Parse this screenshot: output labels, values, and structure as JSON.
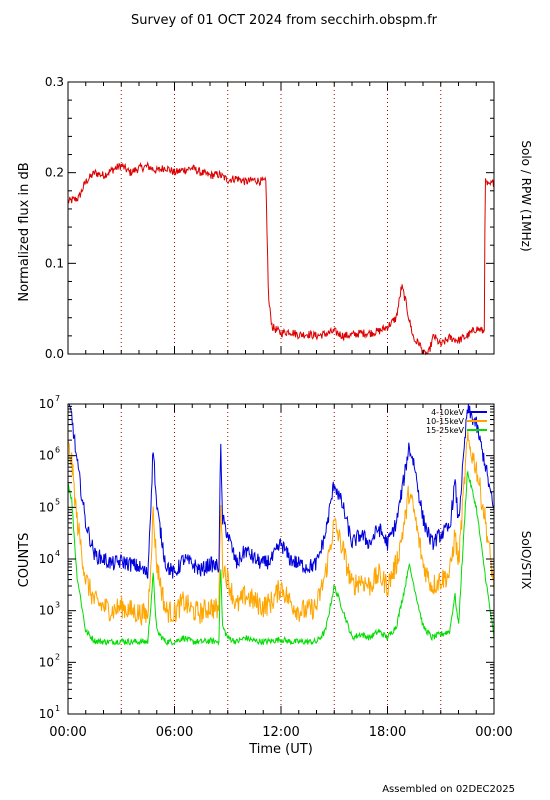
{
  "page": {
    "title": "Survey of 01 OCT 2024 from secchirh.obspm.fr",
    "footer": "Assembled on 02DEC2025"
  },
  "colors": {
    "rpw": "#dd0000",
    "stix_low": "#0000dd",
    "stix_mid": "#ffa500",
    "stix_high": "#00dd00",
    "grid": "#aa0000"
  },
  "chart_data": [
    {
      "type": "line",
      "ylabel": "Normalized flux in dB",
      "right_label": "Solo / RPW (1MHz)",
      "xlim": [
        0,
        24
      ],
      "ylim": [
        0,
        0.3
      ],
      "yticks": [
        0.0,
        0.1,
        0.2,
        0.3
      ],
      "ytick_labels": [
        "0.0",
        "0.1",
        "0.2",
        "0.3"
      ],
      "grid": "vertical dotted lines every 3 hours",
      "series": [
        {
          "color": "#dd0000",
          "x": [
            0,
            0.3,
            0.6,
            1.0,
            1.5,
            2.0,
            2.5,
            3.0,
            3.5,
            4.0,
            4.5,
            5.0,
            5.5,
            6.0,
            6.5,
            7.0,
            7.5,
            8.0,
            8.5,
            9.0,
            9.5,
            10.0,
            10.5,
            11.0,
            11.15,
            11.3,
            11.5,
            12.0,
            12.5,
            13.0,
            13.5,
            14.0,
            14.5,
            15.0,
            15.5,
            16.0,
            16.5,
            17.0,
            17.5,
            18.0,
            18.5,
            18.8,
            19.0,
            19.2,
            19.5,
            19.8,
            20.0,
            20.3,
            20.6,
            21.0,
            21.5,
            22.0,
            22.5,
            23.0,
            23.3,
            23.45,
            23.5,
            23.7,
            24.0
          ],
          "y": [
            0.168,
            0.17,
            0.172,
            0.19,
            0.2,
            0.197,
            0.203,
            0.208,
            0.2,
            0.205,
            0.207,
            0.202,
            0.206,
            0.2,
            0.203,
            0.205,
            0.2,
            0.197,
            0.198,
            0.192,
            0.194,
            0.19,
            0.192,
            0.19,
            0.19,
            0.06,
            0.03,
            0.023,
            0.025,
            0.021,
            0.022,
            0.02,
            0.022,
            0.025,
            0.02,
            0.021,
            0.023,
            0.023,
            0.025,
            0.03,
            0.04,
            0.075,
            0.06,
            0.04,
            0.015,
            0.012,
            0.0,
            0.0,
            0.02,
            0.01,
            0.018,
            0.015,
            0.02,
            0.028,
            0.026,
            0.024,
            0.19,
            0.185,
            0.19
          ]
        }
      ]
    },
    {
      "type": "line",
      "ylabel": "COUNTS",
      "right_label": "SolO/STIX",
      "xlabel": "Time (UT)",
      "xlim": [
        0,
        24
      ],
      "ylim": [
        10,
        10000000
      ],
      "yscale": "log",
      "ytick_exponents": [
        1,
        2,
        3,
        4,
        5,
        6,
        7
      ],
      "xticks": [
        0,
        6,
        12,
        18,
        24
      ],
      "xtick_labels": [
        "00:00",
        "06:00",
        "12:00",
        "18:00",
        "00:00"
      ],
      "grid": "vertical dotted lines every 3 hours",
      "legend_position": "top-right",
      "series": [
        {
          "name": "4-10keV",
          "color": "#0000dd",
          "x": [
            0,
            0.2,
            0.5,
            1.0,
            1.5,
            2.0,
            2.5,
            3.0,
            3.5,
            4.0,
            4.5,
            4.8,
            5.0,
            5.5,
            6.0,
            6.5,
            7.0,
            7.5,
            8.0,
            8.5,
            8.6,
            8.7,
            9.0,
            9.5,
            10.0,
            10.5,
            11.0,
            11.5,
            12.0,
            12.5,
            13.0,
            13.5,
            14.0,
            14.5,
            15.0,
            15.5,
            16.0,
            16.5,
            17.0,
            17.5,
            18.0,
            18.5,
            19.0,
            19.2,
            19.5,
            20.0,
            20.5,
            21.0,
            21.5,
            21.8,
            22.0,
            22.5,
            23.0,
            23.5,
            24.0
          ],
          "y": [
            10000000,
            6000000,
            800000,
            50000,
            12000,
            10000,
            8000,
            9000,
            8000,
            7000,
            5000,
            1500000,
            100000,
            8000,
            5000,
            10000,
            8000,
            6000,
            8000,
            7000,
            1500000,
            60000,
            30000,
            8000,
            15000,
            10000,
            8000,
            10000,
            20000,
            10000,
            8000,
            7000,
            8000,
            30000,
            300000,
            100000,
            20000,
            30000,
            20000,
            40000,
            20000,
            50000,
            500000,
            1500000,
            700000,
            60000,
            20000,
            30000,
            40000,
            300000,
            50000,
            8000000,
            4000000,
            700000,
            80000
          ]
        },
        {
          "name": "10-15keV",
          "color": "#ffa500",
          "x": [
            0,
            0.2,
            0.5,
            1.0,
            1.5,
            2.0,
            2.5,
            3.0,
            3.5,
            4.0,
            4.5,
            4.8,
            5.0,
            5.5,
            6.0,
            6.5,
            7.0,
            7.5,
            8.0,
            8.5,
            8.6,
            8.7,
            9.0,
            9.5,
            10.0,
            10.5,
            11.0,
            11.5,
            12.0,
            12.5,
            13.0,
            13.5,
            14.0,
            14.5,
            15.0,
            15.5,
            16.0,
            16.5,
            17.0,
            17.5,
            18.0,
            18.5,
            19.0,
            19.2,
            19.5,
            20.0,
            20.5,
            21.0,
            21.5,
            21.8,
            22.0,
            22.5,
            23.0,
            23.5,
            24.0
          ],
          "y": [
            1500000,
            800000,
            60000,
            4000,
            1500,
            1200,
            1000,
            1200,
            1000,
            900,
            800,
            80000,
            8000,
            1000,
            900,
            1500,
            1000,
            900,
            1200,
            1000,
            200000,
            8000,
            4000,
            1200,
            2000,
            1500,
            1200,
            1500,
            3000,
            1500,
            1000,
            1000,
            1200,
            5000,
            50000,
            15000,
            3000,
            4000,
            3000,
            5000,
            3000,
            8000,
            60000,
            200000,
            80000,
            8000,
            3000,
            4000,
            5000,
            30000,
            8000,
            2000000,
            600000,
            60000,
            3000
          ]
        },
        {
          "name": "15-25keV",
          "color": "#00dd00",
          "x": [
            0,
            0.2,
            0.5,
            1.0,
            1.5,
            2.0,
            2.5,
            3.0,
            3.5,
            4.0,
            4.5,
            4.8,
            5.0,
            5.5,
            6.0,
            6.5,
            7.0,
            7.5,
            8.0,
            8.5,
            8.6,
            8.7,
            9.0,
            9.5,
            10.0,
            10.5,
            11.0,
            11.5,
            12.0,
            12.5,
            13.0,
            13.5,
            14.0,
            14.5,
            15.0,
            15.5,
            16.0,
            16.5,
            17.0,
            17.5,
            18.0,
            18.5,
            19.0,
            19.2,
            19.5,
            20.0,
            20.5,
            21.0,
            21.5,
            21.8,
            22.0,
            22.5,
            23.0,
            23.5,
            24.0
          ],
          "y": [
            300000,
            150000,
            5000,
            400,
            260,
            250,
            250,
            260,
            250,
            250,
            250,
            5000,
            400,
            250,
            250,
            300,
            250,
            250,
            260,
            250,
            8000,
            500,
            300,
            250,
            300,
            260,
            250,
            260,
            280,
            250,
            250,
            250,
            250,
            400,
            3000,
            1000,
            300,
            350,
            300,
            400,
            300,
            500,
            3000,
            8000,
            3000,
            500,
            300,
            350,
            400,
            2000,
            500,
            500000,
            100000,
            5000,
            300
          ]
        }
      ]
    }
  ]
}
